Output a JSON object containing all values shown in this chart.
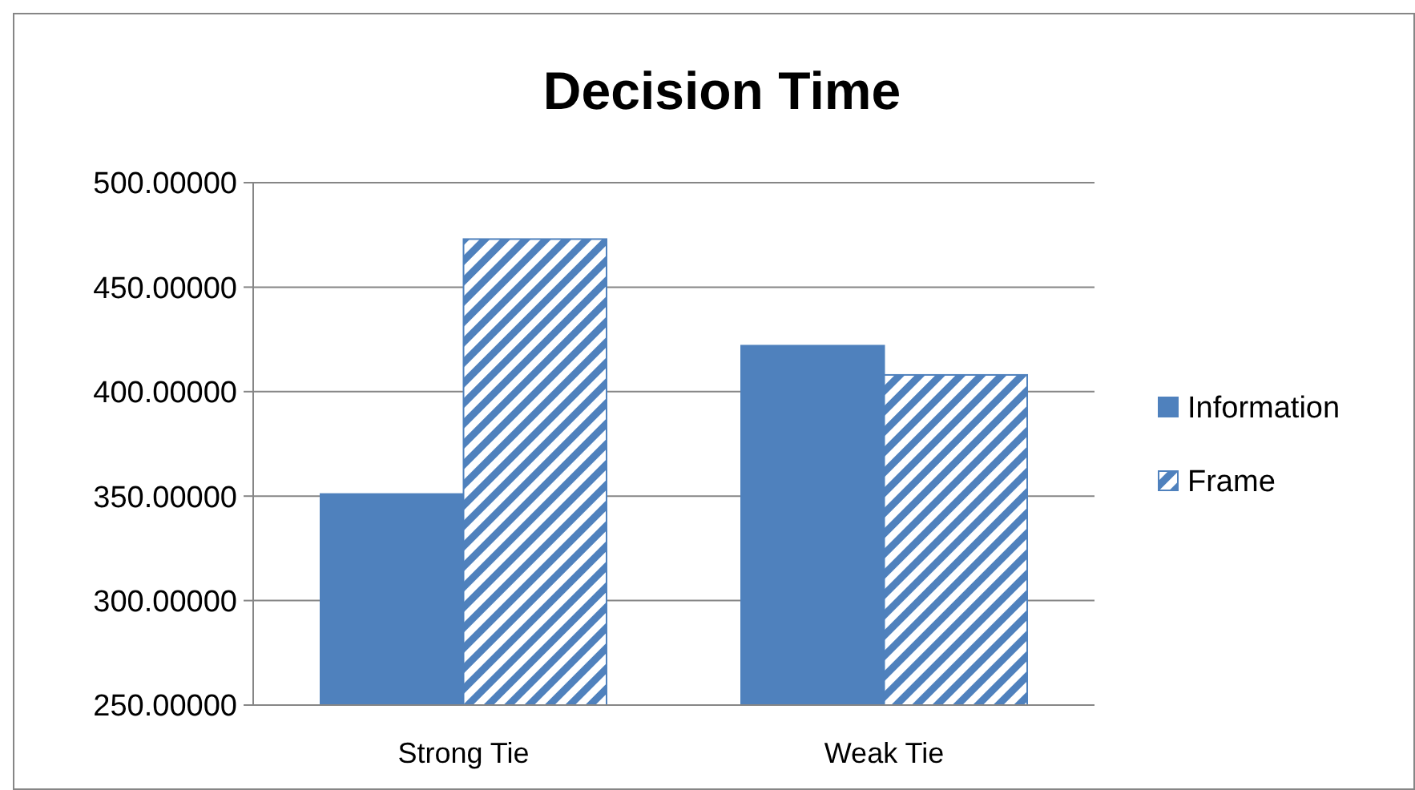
{
  "chart_data": {
    "type": "bar",
    "title": "Decision Time",
    "categories": [
      "Strong Tie",
      "Weak Tie"
    ],
    "series": [
      {
        "name": "Information",
        "color": "#4f81bd",
        "values": [
          351,
          422
        ]
      },
      {
        "name": "Frame",
        "color": "#4f81bd",
        "values": [
          473,
          408
        ]
      }
    ],
    "ylim": [
      250,
      500
    ],
    "yticks": [
      {
        "value": 250,
        "label": "250.00000"
      },
      {
        "value": 300,
        "label": "300.00000"
      },
      {
        "value": 350,
        "label": "350.00000"
      },
      {
        "value": 400,
        "label": "400.00000"
      },
      {
        "value": 450,
        "label": "450.00000"
      },
      {
        "value": 500,
        "label": "500.00000"
      }
    ],
    "grid": "y",
    "legend": "right"
  }
}
